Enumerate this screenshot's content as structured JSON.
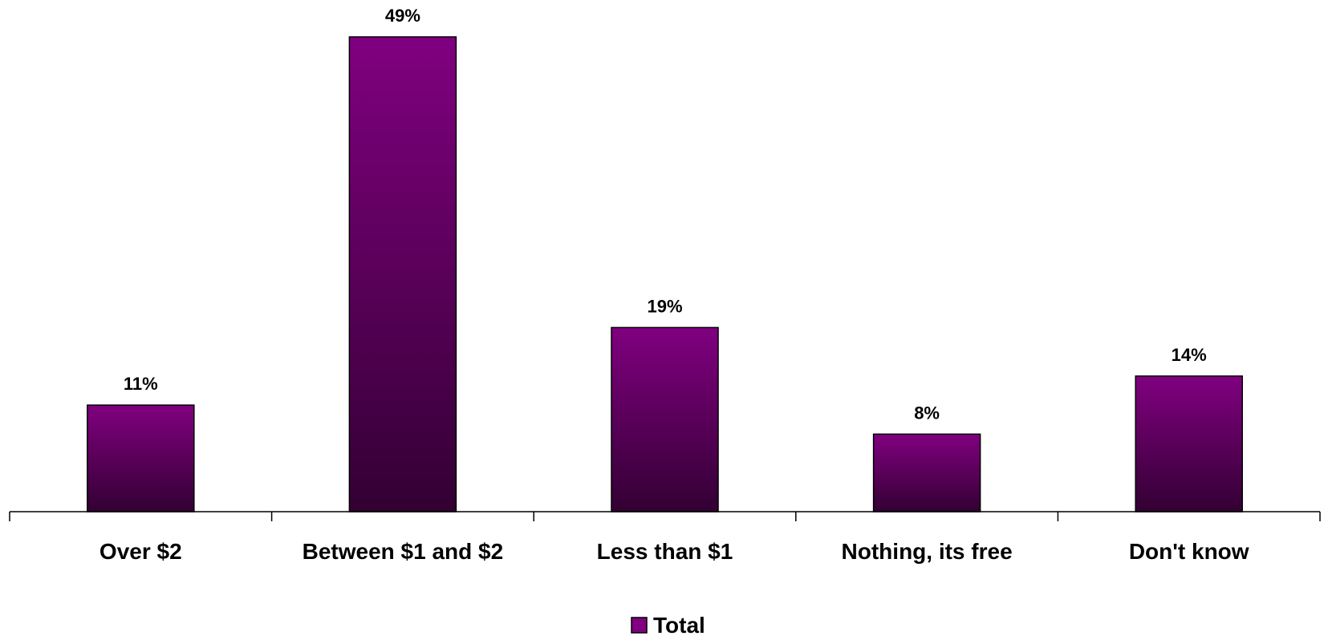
{
  "chart_data": {
    "type": "bar",
    "categories": [
      "Over $2",
      "Between $1 and $2",
      "Less than $1",
      "Nothing, its free",
      "Don't know"
    ],
    "series": [
      {
        "name": "Total",
        "values": [
          11,
          49,
          19,
          8,
          14
        ]
      }
    ],
    "data_labels": [
      "11%",
      "49%",
      "19%",
      "8%",
      "14%"
    ],
    "ylim": [
      0,
      49
    ],
    "grid": false,
    "legend_position": "bottom",
    "colors": {
      "bar_top": "#800080",
      "bar_bottom": "#330033",
      "bar_stroke": "#000000",
      "axis": "#000000"
    }
  }
}
